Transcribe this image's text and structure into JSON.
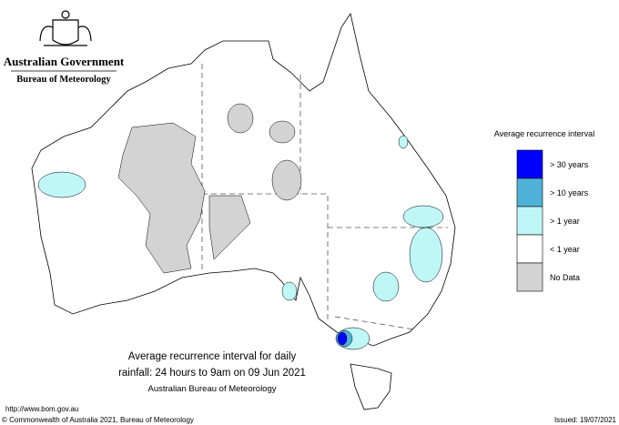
{
  "header": {
    "government": "Australian Government",
    "agency": "Bureau of Meteorology"
  },
  "legend": {
    "title": "Average recurrence interval",
    "items": [
      {
        "label": "> 30 years",
        "color": "#0000ff"
      },
      {
        "label": "> 10 years",
        "color": "#4fb3d9"
      },
      {
        "label": "> 1 year",
        "color": "#bff7f7"
      },
      {
        "label": "< 1 year",
        "color": "#ffffff"
      },
      {
        "label": "No Data",
        "color": "#d3d3d3"
      }
    ]
  },
  "caption": {
    "lines": [
      "Average recurrence interval for daily",
      "rainfall: 24 hours to 9am on 09 Jun 2021"
    ],
    "source": "Australian Bureau of Meteorology"
  },
  "footer": {
    "url": "http://www.bom.gov.au",
    "copyright": "© Commonwealth of Australia 2021, Bureau of Meteorology",
    "issued": "Issued: 19/07/2021"
  }
}
